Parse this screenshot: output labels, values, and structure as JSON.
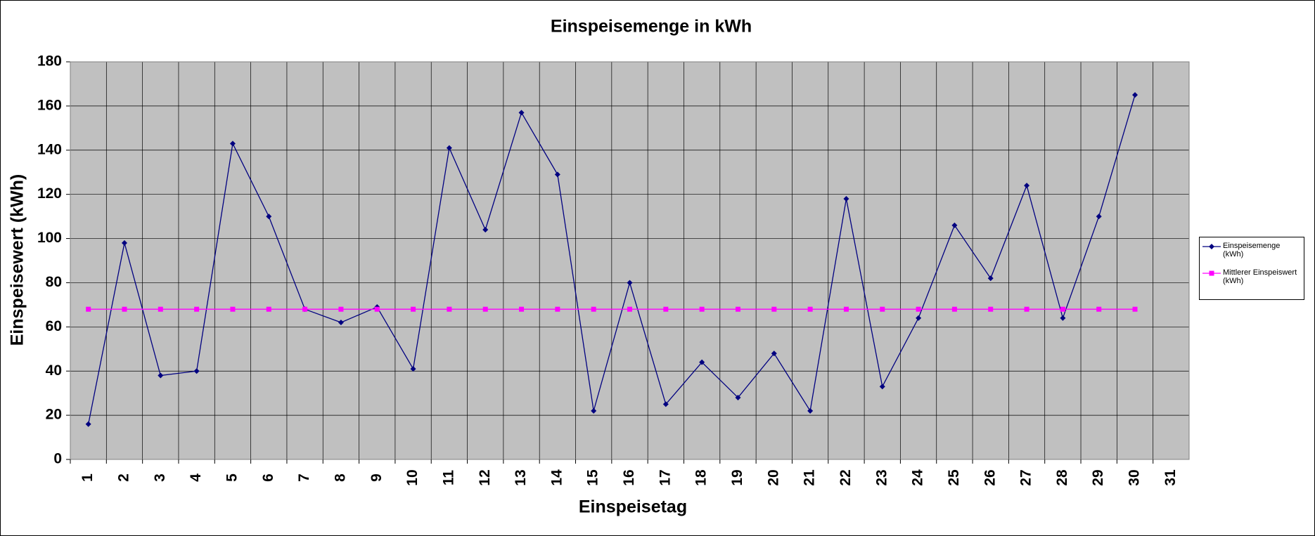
{
  "chart_data": {
    "type": "line",
    "title": "Einspeisemenge in kWh",
    "x_label": "Einspeisetag",
    "y_label": "Einspeisewert  (kWh)",
    "categories": [
      "1",
      "2",
      "3",
      "4",
      "5",
      "6",
      "7",
      "8",
      "9",
      "10",
      "11",
      "12",
      "13",
      "14",
      "15",
      "16",
      "17",
      "18",
      "19",
      "20",
      "21",
      "22",
      "23",
      "24",
      "25",
      "26",
      "27",
      "28",
      "29",
      "30",
      "31"
    ],
    "series": [
      {
        "name": "Einspeisemenge (kWh)",
        "color": "#000080",
        "marker": "diamond",
        "values": [
          16,
          98,
          38,
          40,
          143,
          110,
          68,
          62,
          69,
          41,
          141,
          104,
          157,
          129,
          22,
          80,
          25,
          44,
          28,
          48,
          22,
          118,
          33,
          64,
          106,
          82,
          124,
          64,
          110,
          165,
          null
        ]
      },
      {
        "name": "Mittlerer Einspeiswert (kWh)",
        "color": "#ff00ff",
        "marker": "square",
        "values": [
          68,
          68,
          68,
          68,
          68,
          68,
          68,
          68,
          68,
          68,
          68,
          68,
          68,
          68,
          68,
          68,
          68,
          68,
          68,
          68,
          68,
          68,
          68,
          68,
          68,
          68,
          68,
          68,
          68,
          68,
          null
        ]
      }
    ],
    "ylim": [
      0,
      180
    ],
    "yticks": [
      0,
      20,
      40,
      60,
      80,
      100,
      120,
      140,
      160,
      180
    ],
    "grid": true,
    "legend": "right"
  }
}
